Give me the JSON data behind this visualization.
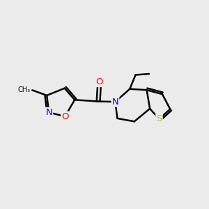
{
  "background_color": "#ebebeb",
  "atom_colors": {
    "O": "#ff0000",
    "N": "#0000ff",
    "S": "#b8b800",
    "C": "#000000"
  },
  "line_width": 1.8,
  "font_size": 9.5,
  "figsize": [
    3.0,
    3.0
  ],
  "dpi": 100
}
